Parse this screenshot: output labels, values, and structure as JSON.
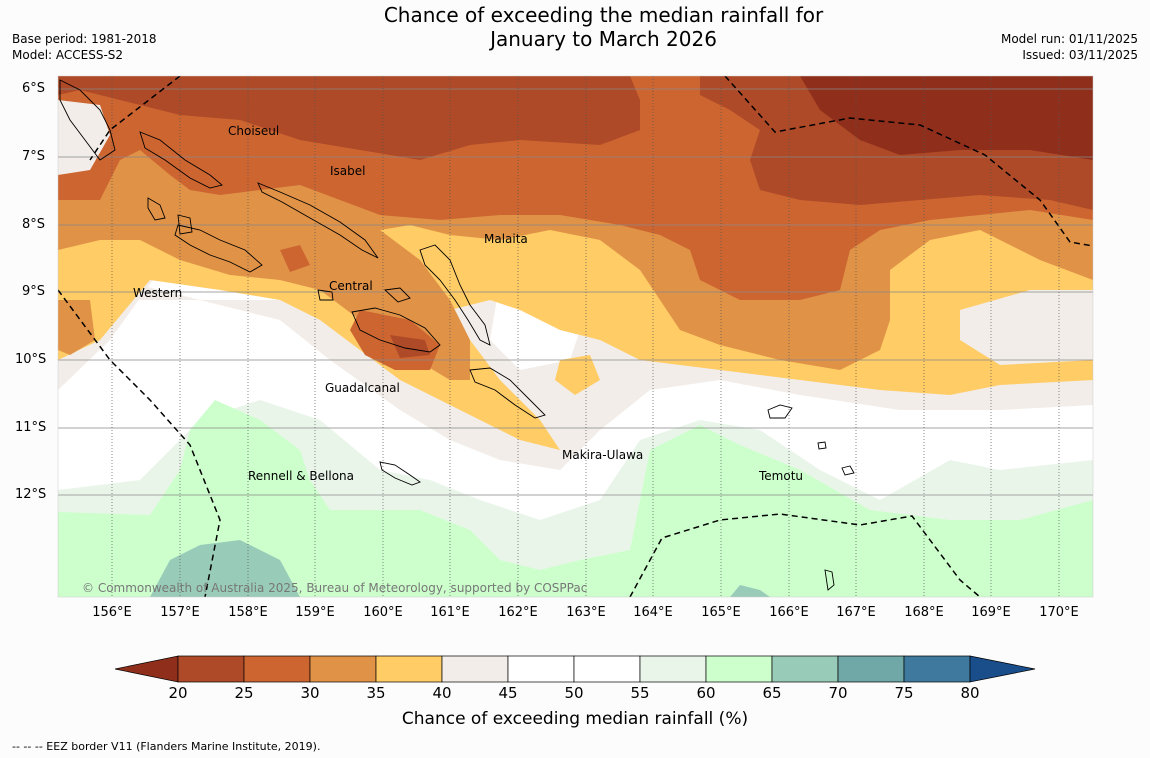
{
  "title_line1": "Chance of exceeding the median rainfall for",
  "title_line2": "January to March 2026",
  "base_period": "Base period: 1981-2018",
  "model": "Model: ACCESS-S2",
  "model_run": "Model run: 01/11/2025",
  "issued": "Issued: 03/11/2025",
  "lat_labels": [
    "6°S",
    "7°S",
    "8°S",
    "9°S",
    "10°S",
    "11°S",
    "12°S"
  ],
  "lon_labels": [
    "156°E",
    "157°E",
    "158°E",
    "159°E",
    "160°E",
    "161°E",
    "162°E",
    "163°E",
    "164°E",
    "165°E",
    "166°E",
    "167°E",
    "168°E",
    "169°E",
    "170°E"
  ],
  "provinces": [
    "Choiseul",
    "Isabel",
    "Malaita",
    "Western",
    "Central",
    "Guadalcanal",
    "Makira-Ulawa",
    "Rennell & Bellona",
    "Temotu"
  ],
  "copyright": "© Commonwealth of Australia 2025, Bureau of Meteorology, supported by COSPPac",
  "colorbar": {
    "title": "Chance of exceeding median rainfall (%)",
    "ticks": [
      "20",
      "25",
      "30",
      "35",
      "40",
      "45",
      "50",
      "55",
      "60",
      "65",
      "70",
      "75",
      "80"
    ],
    "colors": [
      "#8f2f1b",
      "#ae4a27",
      "#cd6531",
      "#e09247",
      "#ffcc66",
      "#f2ede8",
      "#ffffff",
      "#ffffff",
      "#eaf5ea",
      "#ccffcc",
      "#99ccb8",
      "#70a8a8",
      "#3f7a9e",
      "#1a4e8a"
    ]
  },
  "footnote": "--  --  -- EEZ border V11 (Flanders Marine Institute, 2019)."
}
